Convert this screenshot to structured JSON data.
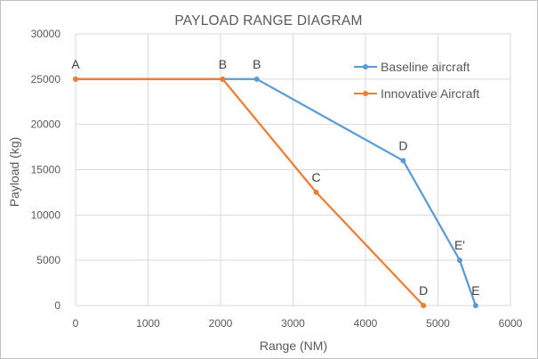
{
  "chart_data": {
    "type": "line",
    "title": "PAYLOAD RANGE DIAGRAM",
    "xlabel": "Range (NM)",
    "ylabel": "Payload (kg)",
    "xlim": [
      0,
      6000
    ],
    "ylim": [
      0,
      30000
    ],
    "xticks": [
      0,
      1000,
      2000,
      3000,
      4000,
      5000,
      6000
    ],
    "yticks": [
      0,
      5000,
      10000,
      15000,
      20000,
      25000,
      30000
    ],
    "grid": true,
    "legend_position": "top-right",
    "series": [
      {
        "name": "Baseline aircraft",
        "color": "#5b9bd5",
        "points": [
          {
            "x": 0,
            "y": 25000,
            "label": ""
          },
          {
            "x": 2030,
            "y": 25000,
            "label": ""
          },
          {
            "x": 2500,
            "y": 25000,
            "label": "B"
          },
          {
            "x": 4520,
            "y": 16000,
            "label": "D"
          },
          {
            "x": 5300,
            "y": 5000,
            "label": "E'"
          },
          {
            "x": 5520,
            "y": 0,
            "label": "E"
          }
        ]
      },
      {
        "name": "Innovative Aircraft",
        "color": "#ed7d31",
        "points": [
          {
            "x": 0,
            "y": 25000,
            "label": "A"
          },
          {
            "x": 2030,
            "y": 25000,
            "label": "B"
          },
          {
            "x": 3320,
            "y": 12500,
            "label": "C"
          },
          {
            "x": 4800,
            "y": 0,
            "label": "D"
          }
        ]
      }
    ]
  }
}
